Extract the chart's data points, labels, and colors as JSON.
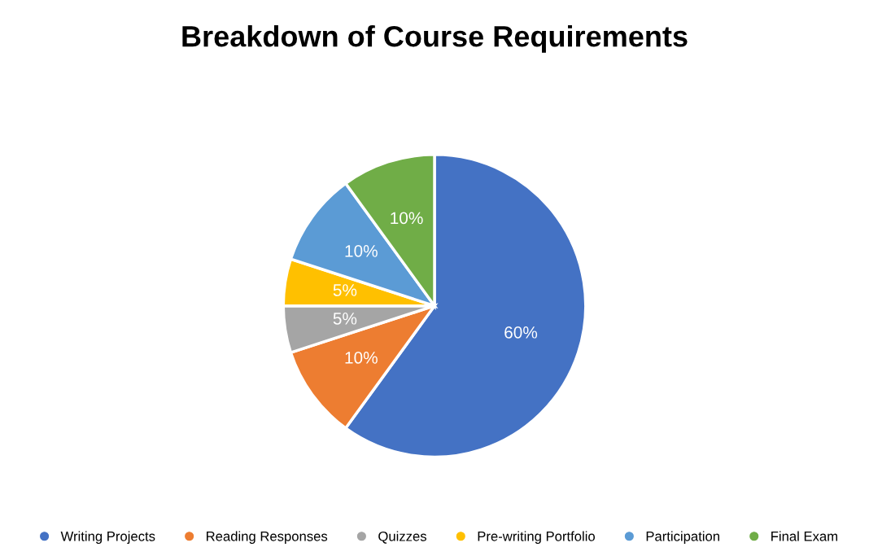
{
  "chart_data": {
    "type": "pie",
    "title": "Breakdown of Course Requirements",
    "categories": [
      "Writing Projects",
      "Reading Responses",
      "Quizzes",
      "Pre-writing Portfolio",
      "Participation",
      "Final Exam"
    ],
    "values": [
      60,
      10,
      5,
      5,
      10,
      10
    ],
    "colors": [
      "#4472c4",
      "#ed7d31",
      "#a5a5a5",
      "#ffc000",
      "#5b9bd5",
      "#70ad47"
    ],
    "value_labels": [
      "60%",
      "10%",
      "5%",
      "5%",
      "10%",
      "10%"
    ],
    "legend": "bottom"
  }
}
